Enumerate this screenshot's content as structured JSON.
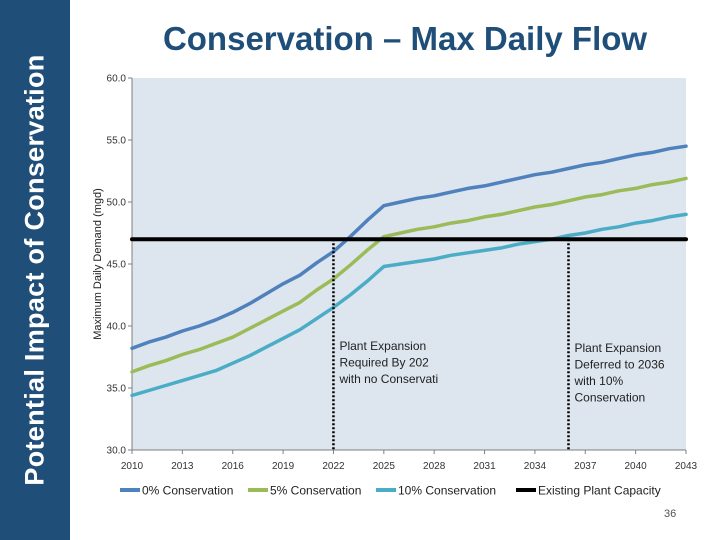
{
  "slide": {
    "title": "Conservation – Max Daily Flow",
    "side_title": "Potential Impact of Conservation",
    "page_number": "36"
  },
  "chart_data": {
    "type": "line",
    "title": "Conservation – Max Daily Flow",
    "xlabel": "",
    "ylabel": "Maximum Daily Demand (mgd)",
    "x_ticks": [
      "2010",
      "2013",
      "2016",
      "2019",
      "2022",
      "2025",
      "2028",
      "2031",
      "2034",
      "2037",
      "2040",
      "2043"
    ],
    "y_ticks": [
      "30.0",
      "35.0",
      "40.0",
      "45.0",
      "50.0",
      "55.0",
      "60.0"
    ],
    "xlim": [
      2010,
      2043
    ],
    "ylim": [
      30,
      60
    ],
    "grid": false,
    "legend_position": "bottom",
    "series": [
      {
        "name": "0% Conservation",
        "color": "#4f81bd",
        "x": [
          2010,
          2011,
          2012,
          2013,
          2014,
          2015,
          2016,
          2017,
          2018,
          2019,
          2020,
          2021,
          2022,
          2023,
          2024,
          2025,
          2026,
          2027,
          2028,
          2029,
          2030,
          2031,
          2032,
          2033,
          2034,
          2035,
          2036,
          2037,
          2038,
          2039,
          2040,
          2041,
          2042,
          2043
        ],
        "values": [
          38.2,
          38.7,
          39.1,
          39.6,
          40.0,
          40.5,
          41.1,
          41.8,
          42.6,
          43.4,
          44.1,
          45.1,
          46.0,
          47.2,
          48.5,
          49.7,
          50.0,
          50.3,
          50.5,
          50.8,
          51.1,
          51.3,
          51.6,
          51.9,
          52.2,
          52.4,
          52.7,
          53.0,
          53.2,
          53.5,
          53.8,
          54.0,
          54.3,
          54.5
        ]
      },
      {
        "name": "5% Conservation",
        "color": "#9bbb59",
        "x": [
          2010,
          2011,
          2012,
          2013,
          2014,
          2015,
          2016,
          2017,
          2018,
          2019,
          2020,
          2021,
          2022,
          2023,
          2024,
          2025,
          2026,
          2027,
          2028,
          2029,
          2030,
          2031,
          2032,
          2033,
          2034,
          2035,
          2036,
          2037,
          2038,
          2039,
          2040,
          2041,
          2042,
          2043
        ],
        "values": [
          36.3,
          36.8,
          37.2,
          37.7,
          38.1,
          38.6,
          39.1,
          39.8,
          40.5,
          41.2,
          41.9,
          42.9,
          43.8,
          44.9,
          46.1,
          47.2,
          47.5,
          47.8,
          48.0,
          48.3,
          48.5,
          48.8,
          49.0,
          49.3,
          49.6,
          49.8,
          50.1,
          50.4,
          50.6,
          50.9,
          51.1,
          51.4,
          51.6,
          51.9
        ]
      },
      {
        "name": "10% Conservation",
        "color": "#4bacc6",
        "x": [
          2010,
          2011,
          2012,
          2013,
          2014,
          2015,
          2016,
          2017,
          2018,
          2019,
          2020,
          2021,
          2022,
          2023,
          2024,
          2025,
          2026,
          2027,
          2028,
          2029,
          2030,
          2031,
          2032,
          2033,
          2034,
          2035,
          2036,
          2037,
          2038,
          2039,
          2040,
          2041,
          2042,
          2043
        ],
        "values": [
          34.4,
          34.8,
          35.2,
          35.6,
          36.0,
          36.4,
          37.0,
          37.6,
          38.3,
          39.0,
          39.7,
          40.6,
          41.5,
          42.5,
          43.6,
          44.8,
          45.0,
          45.2,
          45.4,
          45.7,
          45.9,
          46.1,
          46.3,
          46.6,
          46.8,
          47.0,
          47.3,
          47.5,
          47.8,
          48.0,
          48.3,
          48.5,
          48.8,
          49.0
        ]
      },
      {
        "name": "Existing Plant Capacity",
        "color": "#000000",
        "x": [
          2010,
          2043
        ],
        "values": [
          47.0,
          47.0
        ]
      }
    ],
    "annotations": [
      {
        "text_lines": [
          "Plant Expansion",
          "Required By 202",
          "with no Conservati"
        ],
        "year": 2022
      },
      {
        "text_lines": [
          "Plant Expansion",
          "Deferred to 2036",
          "with 10%",
          "Conservation"
        ],
        "year": 2036
      }
    ]
  }
}
